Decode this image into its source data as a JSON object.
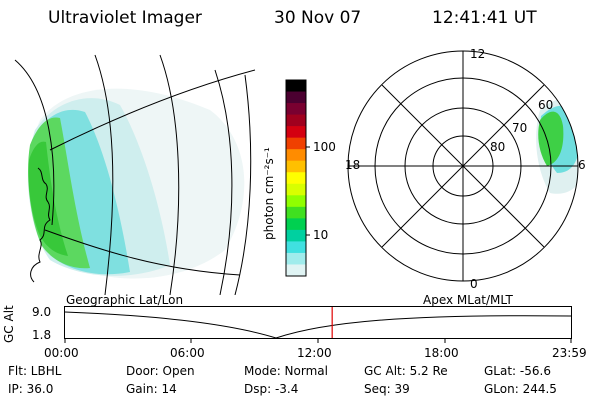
{
  "header": {
    "instrument": "Ultraviolet Imager",
    "date": "30 Nov 07",
    "time": "12:41:41 UT"
  },
  "colorbar": {
    "unit_label": "photon cm⁻²s⁻¹",
    "tick_100": "100",
    "tick_10": "10",
    "colors": [
      "#000000",
      "#4b0030",
      "#7a0030",
      "#a0001e",
      "#d40010",
      "#f04000",
      "#ff8c00",
      "#ffc000",
      "#ffff00",
      "#d8ff00",
      "#90ff00",
      "#40e020",
      "#00d050",
      "#00d0a0",
      "#40e0e0",
      "#a0ecec",
      "#e0f4f4"
    ]
  },
  "polar": {
    "mlt_12": "12",
    "mlt_18": "18",
    "mlt_6": "6",
    "mlt_0": "0",
    "lat_60": "60",
    "lat_70": "70",
    "lat_80": "80"
  },
  "orbit": {
    "ylabel": "GC Alt",
    "y_top": "9.0",
    "y_bottom": "1.8",
    "left_label": "Geographic Lat/Lon",
    "right_label": "Apex MLat/MLT",
    "x_ticks": [
      "00:00",
      "06:00",
      "12:00",
      "18:00",
      "23:59"
    ],
    "current_time_fraction": 0.528
  },
  "info": {
    "flt": "Flt: LBHL",
    "ip": "IP: 36.0",
    "door": "Door: Open",
    "gain": "Gain: 14",
    "mode": "Mode: Normal",
    "dsp": "Dsp:   -3.4",
    "gcalt": "GC Alt: 5.2 Re",
    "seq": "Seq: 39",
    "glat": "GLat: -56.6",
    "glon": "GLon: 244.5"
  }
}
